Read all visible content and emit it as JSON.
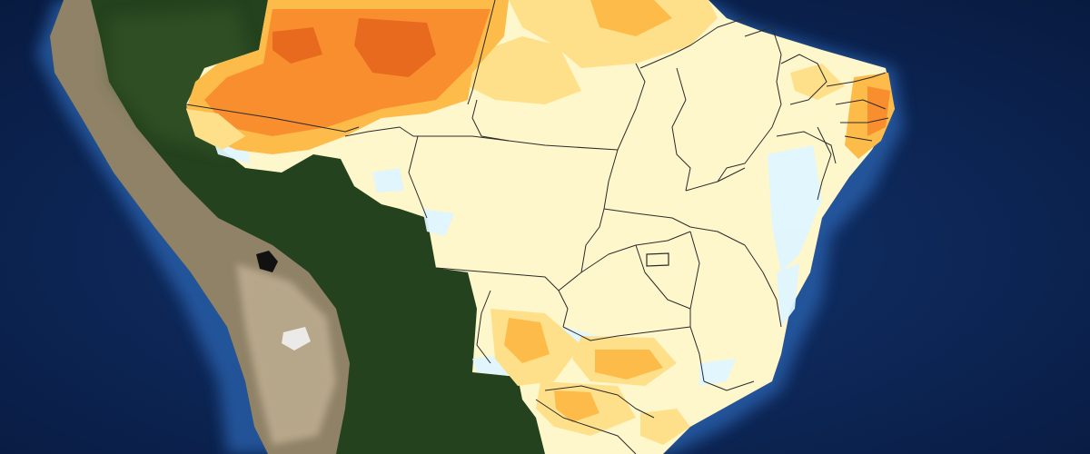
{
  "map": {
    "colors": {
      "ocean_deep": "#081a3f",
      "ocean_mid": "#12336e",
      "ocean_shelf": "#2a64b0",
      "forest": "#24421d",
      "forest_light": "#3a5a2a",
      "andes": "#9b8a70",
      "andes_light": "#c9b79a",
      "anomaly_near_normal": "#fff7cc",
      "anomaly_light_yellow": "#ffe08a",
      "anomaly_yellow_orange": "#fdbb4a",
      "anomaly_orange": "#f98e2f",
      "anomaly_dark_orange": "#e86a1e",
      "anomaly_light_blue": "#dff5ff",
      "state_border": "#2b2b2b",
      "salt_flat": "#f2f2f2"
    }
  }
}
